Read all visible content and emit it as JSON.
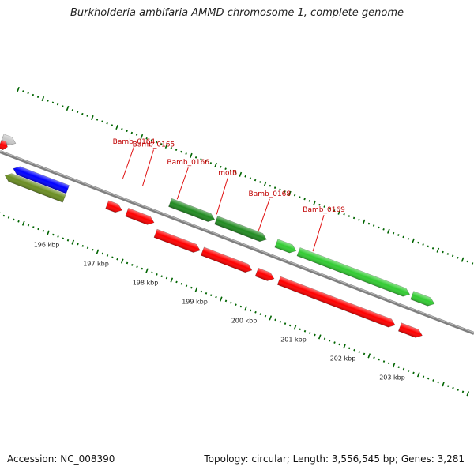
{
  "title": "Burkholderia ambifaria AMMD chromosome 1, complete genome",
  "accession": "Accession: NC_008390",
  "summary": "Topology: circular; Length: 3,556,545 bp; Genes: 3,281",
  "map_range_kbp": [
    194.6,
    204.2
  ],
  "tick_labels": [
    {
      "kbp": 196,
      "label": "196 kbp"
    },
    {
      "kbp": 197,
      "label": "197 kbp"
    },
    {
      "kbp": 198,
      "label": "198 kbp"
    },
    {
      "kbp": 199,
      "label": "199 kbp"
    },
    {
      "kbp": 200,
      "label": "200 kbp"
    },
    {
      "kbp": 201,
      "label": "201 kbp"
    },
    {
      "kbp": 202,
      "label": "202 kbp"
    },
    {
      "kbp": 203,
      "label": "203 kbp"
    }
  ],
  "gene_labels": [
    {
      "name": "Bamb_0164",
      "kbp": 196.95
    },
    {
      "name": "Bamb_0165",
      "kbp": 197.35
    },
    {
      "name": "Bamb_0166",
      "kbp": 198.05
    },
    {
      "name": "motB",
      "kbp": 198.85
    },
    {
      "name": "Bamb_0168",
      "kbp": 199.7
    },
    {
      "name": "Bamb_0169",
      "kbp": 200.8
    }
  ],
  "features": [
    {
      "track": "fwd_gene",
      "start_kbp": 194.55,
      "end_kbp": 194.82,
      "color": "#c8c8c8",
      "strand": 1
    },
    {
      "track": "fwd_cds",
      "start_kbp": 194.55,
      "end_kbp": 194.7,
      "color": "#ff0000",
      "strand": 1
    },
    {
      "track": "rev_cds",
      "start_kbp": 194.95,
      "end_kbp": 196.05,
      "color": "#0000ff",
      "strand": -1
    },
    {
      "track": "rev_gene",
      "start_kbp": 194.85,
      "end_kbp": 196.05,
      "color": "#6b8e23",
      "strand": -1
    },
    {
      "track": "rev_cds",
      "start_kbp": 196.85,
      "end_kbp": 197.15,
      "color": "#ff0000",
      "strand": 1
    },
    {
      "track": "rev_cds",
      "start_kbp": 197.25,
      "end_kbp": 197.8,
      "color": "#ff0000",
      "strand": 1
    },
    {
      "track": "fwd_gene",
      "start_kbp": 197.95,
      "end_kbp": 198.85,
      "color": "#228b22",
      "strand": 1
    },
    {
      "track": "fwd_gene",
      "start_kbp": 198.88,
      "end_kbp": 199.9,
      "color": "#228b22",
      "strand": 1
    },
    {
      "track": "rev_gene",
      "start_kbp": 197.9,
      "end_kbp": 198.8,
      "color": "#ff0000",
      "strand": 1
    },
    {
      "track": "rev_gene",
      "start_kbp": 198.85,
      "end_kbp": 199.85,
      "color": "#ff0000",
      "strand": 1
    },
    {
      "track": "fwd_gene",
      "start_kbp": 200.1,
      "end_kbp": 200.5,
      "color": "#33cc33",
      "strand": 1
    },
    {
      "track": "fwd_gene",
      "start_kbp": 200.55,
      "end_kbp": 202.8,
      "color": "#33cc33",
      "strand": 1
    },
    {
      "track": "fwd_gene",
      "start_kbp": 202.85,
      "end_kbp": 203.3,
      "color": "#33cc33",
      "strand": 1
    },
    {
      "track": "rev_gene",
      "start_kbp": 199.95,
      "end_kbp": 200.3,
      "color": "#ff0000",
      "strand": 1
    },
    {
      "track": "rev_gene",
      "start_kbp": 200.4,
      "end_kbp": 202.75,
      "color": "#ff0000",
      "strand": 1
    },
    {
      "track": "rev_gene",
      "start_kbp": 202.85,
      "end_kbp": 203.3,
      "color": "#ff0000",
      "strand": 1
    }
  ],
  "colors": {
    "backbone": "#7f7f7f",
    "ticks": "#006400",
    "labels": "#c00000"
  }
}
